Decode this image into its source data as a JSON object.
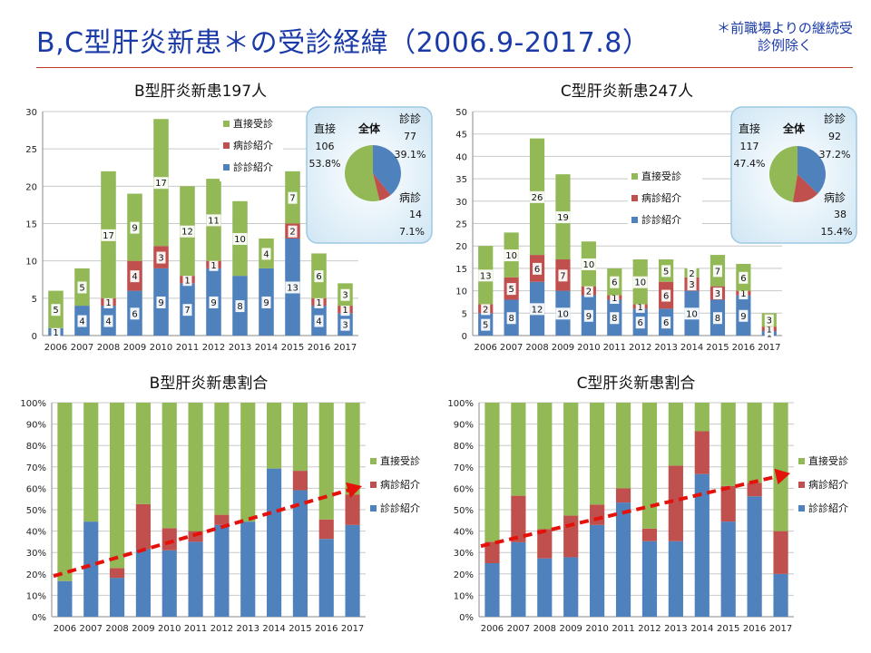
{
  "page": {
    "title": "B,C型肝炎新患＊の受診経緯（2006.9-2017.8）",
    "note": "＊前職場よりの継続受診例除く"
  },
  "colors": {
    "chokusetsu": "#93b856",
    "byoushin": "#c0504d",
    "shinshin": "#4f81bd"
  },
  "chart_data": [
    {
      "id": "b-count",
      "type": "bar",
      "stacked": true,
      "title": "B型肝炎新患197人",
      "categories": [
        "2006",
        "2007",
        "2008",
        "2009",
        "2010",
        "2011",
        "2012",
        "2013",
        "2014",
        "2015",
        "2016",
        "2017"
      ],
      "series": [
        {
          "name": "診診紹介",
          "values": [
            1,
            4,
            4,
            6,
            9,
            7,
            9,
            8,
            9,
            13,
            4,
            3
          ]
        },
        {
          "name": "病診紹介",
          "values": [
            0,
            0,
            1,
            4,
            3,
            1,
            1,
            0,
            0,
            2,
            1,
            1
          ]
        },
        {
          "name": "直接受診",
          "values": [
            5,
            5,
            17,
            9,
            17,
            12,
            11,
            10,
            4,
            7,
            6,
            3
          ]
        }
      ],
      "ylim": [
        0,
        30
      ],
      "yticks": [
        "0",
        "5",
        "10",
        "15",
        "20",
        "25",
        "30"
      ],
      "legend": [
        "直接受診",
        "病診紹介",
        "診診紹介"
      ],
      "legend_position": "top-right",
      "inset": {
        "type": "pie",
        "title": "全体",
        "values": [
          106,
          77,
          14
        ],
        "labels": [
          "直接",
          "診診",
          "病診"
        ],
        "counts": [
          "106",
          "77",
          "14"
        ],
        "percents": [
          "53.8%",
          "39.1%",
          "7.1%"
        ]
      }
    },
    {
      "id": "c-count",
      "type": "bar",
      "stacked": true,
      "title": "C型肝炎新患247人",
      "categories": [
        "2006",
        "2007",
        "2008",
        "2009",
        "2010",
        "2011",
        "2012",
        "2013",
        "2014",
        "2015",
        "2016",
        "2017"
      ],
      "series": [
        {
          "name": "診診紹介",
          "values": [
            5,
            8,
            12,
            10,
            9,
            8,
            6,
            6,
            10,
            8,
            9,
            1
          ]
        },
        {
          "name": "病診紹介",
          "values": [
            2,
            5,
            6,
            7,
            2,
            1,
            1,
            6,
            3,
            3,
            1,
            1
          ]
        },
        {
          "name": "直接受診",
          "values": [
            13,
            10,
            26,
            19,
            10,
            6,
            10,
            5,
            2,
            7,
            6,
            3
          ]
        }
      ],
      "ylim": [
        0,
        50
      ],
      "yticks": [
        "0",
        "5",
        "10",
        "15",
        "20",
        "25",
        "30",
        "35",
        "40",
        "45",
        "50"
      ],
      "legend": [
        "直接受診",
        "病診紹介",
        "診診紹介"
      ],
      "legend_position": "middle",
      "inset": {
        "type": "pie",
        "title": "全体",
        "values": [
          117,
          92,
          38
        ],
        "labels": [
          "直接",
          "診診",
          "病診"
        ],
        "counts": [
          "117",
          "92",
          "38"
        ],
        "percents": [
          "47.4%",
          "37.2%",
          "15.4%"
        ]
      }
    },
    {
      "id": "b-ratio",
      "type": "bar",
      "stacked": true,
      "percent": true,
      "title": "B型肝炎新患割合",
      "categories": [
        "2006",
        "2007",
        "2008",
        "2009",
        "2010",
        "2011",
        "2012",
        "2013",
        "2014",
        "2015",
        "2016",
        "2017"
      ],
      "series": [
        {
          "name": "診診紹介",
          "values": [
            1,
            4,
            4,
            6,
            9,
            7,
            9,
            8,
            9,
            13,
            4,
            3
          ]
        },
        {
          "name": "病診紹介",
          "values": [
            0,
            0,
            1,
            4,
            3,
            1,
            1,
            0,
            0,
            2,
            1,
            1
          ]
        },
        {
          "name": "直接受診",
          "values": [
            5,
            5,
            17,
            9,
            17,
            12,
            11,
            10,
            4,
            7,
            6,
            3
          ]
        }
      ],
      "ylim": [
        0,
        100
      ],
      "yticks": [
        "0%",
        "10%",
        "20%",
        "30%",
        "40%",
        "50%",
        "60%",
        "70%",
        "80%",
        "90%",
        "100%"
      ],
      "legend": [
        "直接受診",
        "病診紹介",
        "診診紹介"
      ],
      "legend_position": "right",
      "trend": [
        19,
        61
      ]
    },
    {
      "id": "c-ratio",
      "type": "bar",
      "stacked": true,
      "percent": true,
      "title": "C型肝炎新患割合",
      "categories": [
        "2006",
        "2007",
        "2008",
        "2009",
        "2010",
        "2011",
        "2012",
        "2013",
        "2014",
        "2015",
        "2016",
        "2017"
      ],
      "series": [
        {
          "name": "診診紹介",
          "values": [
            5,
            8,
            12,
            10,
            9,
            8,
            6,
            6,
            10,
            8,
            9,
            1
          ]
        },
        {
          "name": "病診紹介",
          "values": [
            2,
            5,
            6,
            7,
            2,
            1,
            1,
            6,
            3,
            3,
            1,
            1
          ]
        },
        {
          "name": "直接受診",
          "values": [
            13,
            10,
            26,
            19,
            10,
            6,
            10,
            5,
            2,
            7,
            6,
            3
          ]
        }
      ],
      "ylim": [
        0,
        100
      ],
      "yticks": [
        "0%",
        "10%",
        "20%",
        "30%",
        "40%",
        "50%",
        "60%",
        "70%",
        "80%",
        "90%",
        "100%"
      ],
      "legend": [
        "直接受診",
        "病診紹介",
        "診診紹介"
      ],
      "legend_position": "right",
      "trend": [
        33,
        67
      ]
    }
  ]
}
